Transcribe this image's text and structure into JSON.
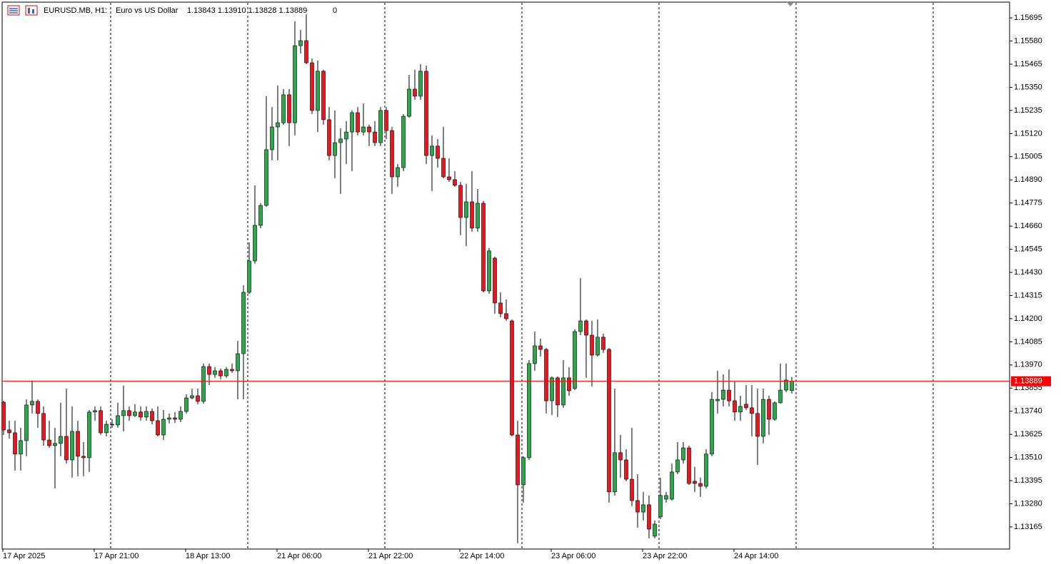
{
  "chart_data": {
    "type": "candlestick",
    "title": "EURUSD.MB, H1:",
    "subtitle": "Euro vs US Dollar",
    "quote": "1.13843 1.13910 1.13828 1.13889",
    "spread": 0,
    "colors": {
      "up": "#2ba84a",
      "down": "#f0141e",
      "wick": "#000000",
      "bid": "#ff0000"
    },
    "bid": 1.13889,
    "ylim": [
      1.13055,
      1.15784
    ],
    "yticks": [
      1.15695,
      {
        "value": 1.1558,
        "label": "1.15580"
      },
      1.15465,
      {
        "value": 1.1535,
        "label": "1.15350"
      },
      1.15235,
      {
        "value": 1.1512,
        "label": "1.15120"
      },
      1.15005,
      {
        "value": 1.1489,
        "label": "1.14890"
      },
      1.14775,
      {
        "value": 1.1466,
        "label": "1.14660"
      },
      1.14545,
      {
        "value": 1.1443,
        "label": "1.14430"
      },
      1.14315,
      {
        "value": 1.142,
        "label": "1.14200"
      },
      1.14085,
      {
        "value": 1.1397,
        "label": "1.13970"
      },
      1.13855,
      {
        "value": 1.1374,
        "label": "1.13740"
      },
      1.13625,
      {
        "value": 1.1351,
        "label": "1.13510"
      },
      1.13395,
      {
        "value": 1.1328,
        "label": "1.13280"
      },
      1.13165
    ],
    "categories": [
      "17 Apr 2025",
      null,
      null,
      null,
      null,
      null,
      null,
      null,
      null,
      null,
      null,
      null,
      null,
      null,
      null,
      null,
      "17 Apr 21:00",
      null,
      null,
      null,
      null,
      null,
      null,
      null,
      null,
      null,
      null,
      null,
      null,
      null,
      null,
      null,
      "18 Apr 13:00",
      null,
      null,
      null,
      null,
      null,
      null,
      null,
      null,
      null,
      null,
      null,
      null,
      null,
      null,
      null,
      "21 Apr 06:00",
      null,
      null,
      null,
      null,
      null,
      null,
      null,
      null,
      null,
      null,
      null,
      null,
      null,
      null,
      null,
      "21 Apr 22:00",
      null,
      null,
      null,
      null,
      null,
      null,
      null,
      null,
      null,
      null,
      null,
      null,
      null,
      null,
      null,
      "22 Apr 14:00",
      null,
      null,
      null,
      null,
      null,
      null,
      null,
      null,
      null,
      null,
      null,
      null,
      null,
      null,
      null,
      "23 Apr 06:00",
      null,
      null,
      null,
      null,
      null,
      null,
      null,
      null,
      null,
      null,
      null,
      null,
      null,
      null,
      null,
      "23 Apr 22:00",
      null,
      null,
      null,
      null,
      null,
      null,
      null,
      null,
      null,
      null,
      null,
      null,
      null,
      null,
      null,
      "24 Apr 14:00",
      null,
      null,
      null,
      null,
      null,
      null,
      null,
      null,
      null,
      null
    ],
    "open": [
      1.13785,
      1.13647,
      1.13633,
      1.13527,
      1.13594,
      1.13771,
      1.13789,
      1.13729,
      1.13597,
      1.13569,
      1.1358,
      1.13615,
      1.13498,
      1.1364,
      1.13516,
      1.13509,
      1.13736,
      1.13743,
      1.13633,
      1.13675,
      1.13672,
      1.13718,
      1.13743,
      1.13718,
      1.13736,
      1.13711,
      1.13739,
      1.13693,
      1.13622,
      1.137,
      1.13707,
      1.137,
      1.13739,
      1.13806,
      1.13817,
      1.13789,
      1.13962,
      1.13923,
      1.13941,
      1.13916,
      1.13948,
      1.13941,
      1.14026,
      1.14331,
      1.14487,
      1.14664,
      1.14763,
      1.1504,
      1.15153,
      1.15174,
      1.15313,
      1.15174,
      1.15557,
      1.15582,
      1.15472,
      1.15235,
      1.1543,
      1.15189,
      1.15011,
      1.15075,
      1.15093,
      1.15128,
      1.15224,
      1.15128,
      1.15153,
      1.15128,
      1.15075,
      1.15235,
      1.15135,
      1.14905,
      1.14951,
      1.15206,
      1.15341,
      1.15306,
      1.1543,
      1.15011,
      1.15058,
      1.14997,
      1.14905,
      1.14891,
      1.14863,
      1.14703,
      1.14781,
      1.1465,
      1.14774,
      1.14338,
      1.14501,
      1.14278,
      1.14225,
      1.14189,
      1.13622,
      1.13374,
      1.13509,
      1.13977,
      1.14065,
      1.14047,
      1.13792,
      1.13906,
      1.13771,
      1.13906,
      1.13853,
      1.14136,
      1.14189,
      1.14118,
      1.14019,
      1.14108,
      1.14047,
      1.13339,
      1.13534,
      1.13498,
      1.13402,
      1.13296,
      1.13239,
      1.13275,
      1.13119,
      1.13215,
      1.13303,
      1.13303,
      1.13438,
      1.13498,
      1.13558,
      1.13392,
      1.13381,
      1.13367,
      1.13527,
      1.13792,
      1.13799,
      1.13845,
      1.13792,
      1.13736,
      1.13775,
      1.13757,
      1.13729,
      1.13615,
      1.13799,
      1.137,
      1.13782,
      1.13845,
      1.13843
    ],
    "high": [
      1.13792,
      1.13693,
      1.13693,
      1.13658,
      1.13799,
      1.13892,
      1.13799,
      1.13764,
      1.13693,
      1.13658,
      1.13782,
      1.13853,
      1.13764,
      1.13693,
      1.13587,
      1.13746,
      1.13764,
      1.13764,
      1.13693,
      1.137,
      1.13782,
      1.13867,
      1.13764,
      1.13775,
      1.13764,
      1.13764,
      1.13753,
      1.13764,
      1.13746,
      1.13729,
      1.13736,
      1.13764,
      1.13824,
      1.13853,
      1.13853,
      1.13977,
      1.13977,
      1.13959,
      1.13952,
      1.13959,
      1.13977,
      1.1409,
      1.14366,
      1.14579,
      1.14863,
      1.14774,
      1.15306,
      1.15252,
      1.15359,
      1.15341,
      1.15341,
      1.15678,
      1.15635,
      1.15713,
      1.15493,
      1.15483,
      1.15437,
      1.15252,
      1.15235,
      1.15146,
      1.15182,
      1.15235,
      1.15252,
      1.1527,
      1.15164,
      1.15182,
      1.15252,
      1.15252,
      1.15153,
      1.14969,
      1.15217,
      1.15412,
      1.15437,
      1.15465,
      1.15458,
      1.15111,
      1.15093,
      1.15153,
      1.14997,
      1.14933,
      1.1488,
      1.1487,
      1.14933,
      1.14845,
      1.14785,
      1.14551,
      1.14508,
      1.14331,
      1.14296,
      1.14196,
      1.13693,
      1.13516,
      1.13994,
      1.14136,
      1.14101,
      1.14055,
      1.13913,
      1.13913,
      1.13994,
      1.13959,
      1.14147,
      1.14402,
      1.14196,
      1.14189,
      1.14196,
      1.14125,
      1.14055,
      1.13853,
      1.13622,
      1.13551,
      1.13658,
      1.13427,
      1.13339,
      1.13321,
      1.13197,
      1.1341,
      1.13339,
      1.1348,
      1.13587,
      1.13587,
      1.13569,
      1.13463,
      1.1341,
      1.13551,
      1.13835,
      1.13941,
      1.13923,
      1.13948,
      1.13888,
      1.13817,
      1.1387,
      1.1387,
      1.13853,
      1.13853,
      1.13817,
      1.13789,
      1.13977,
      1.13977,
      1.1391
    ],
    "low": [
      1.13622,
      1.13604,
      1.13445,
      1.13445,
      1.13516,
      1.13729,
      1.13658,
      1.13569,
      1.13558,
      1.13356,
      1.13516,
      1.1348,
      1.1341,
      1.13417,
      1.13417,
      1.13438,
      1.13693,
      1.13622,
      1.13615,
      1.13658,
      1.13658,
      1.1364,
      1.13693,
      1.13711,
      1.13693,
      1.13693,
      1.13675,
      1.13615,
      1.13597,
      1.13679,
      1.13682,
      1.13686,
      1.13729,
      1.13799,
      1.13775,
      1.13778,
      1.1387,
      1.13906,
      1.13899,
      1.13906,
      1.13931,
      1.13799,
      1.13799,
      1.14324,
      1.14473,
      1.1465,
      1.14756,
      1.14987,
      1.14987,
      1.15164,
      1.15058,
      1.15111,
      1.15518,
      1.15465,
      1.15217,
      1.15128,
      1.15164,
      1.14987,
      1.14898,
      1.1482,
      1.14969,
      1.14933,
      1.15111,
      1.15111,
      1.15058,
      1.15058,
      1.15058,
      1.15093,
      1.1482,
      1.14856,
      1.14933,
      1.15199,
      1.15288,
      1.15288,
      1.14969,
      1.14834,
      1.14951,
      1.14898,
      1.1488,
      1.14856,
      1.14615,
      1.14561,
      1.14632,
      1.14632,
      1.14331,
      1.14324,
      1.14225,
      1.14207,
      1.14189,
      1.13615,
      1.13084,
      1.13286,
      1.13498,
      1.13941,
      1.14012,
      1.13729,
      1.13721,
      1.13711,
      1.13757,
      1.13817,
      1.13845,
      1.14118,
      1.13906,
      1.13863,
      1.14012,
      1.1403,
      1.13286,
      1.13321,
      1.1341,
      1.13392,
      1.13268,
      1.13161,
      1.13197,
      1.13108,
      1.13108,
      1.13204,
      1.13286,
      1.13296,
      1.13427,
      1.1348,
      1.13374,
      1.13339,
      1.13314,
      1.13356,
      1.13516,
      1.13729,
      1.13764,
      1.13764,
      1.13693,
      1.13693,
      1.13746,
      1.13615,
      1.13473,
      1.1358,
      1.13622,
      1.13693,
      1.13778,
      1.13835,
      1.13828
    ],
    "close": [
      1.13647,
      1.13633,
      1.13527,
      1.13594,
      1.13771,
      1.13789,
      1.13729,
      1.13597,
      1.13569,
      1.1358,
      1.13615,
      1.13498,
      1.1364,
      1.13516,
      1.13509,
      1.13736,
      1.13743,
      1.13633,
      1.13675,
      1.13672,
      1.13718,
      1.13743,
      1.13718,
      1.13736,
      1.13711,
      1.13739,
      1.13693,
      1.13622,
      1.137,
      1.13707,
      1.137,
      1.13739,
      1.13806,
      1.13817,
      1.13789,
      1.13962,
      1.13923,
      1.13941,
      1.13916,
      1.13948,
      1.13941,
      1.14026,
      1.14331,
      1.14487,
      1.14664,
      1.14763,
      1.1504,
      1.15153,
      1.15174,
      1.15313,
      1.15174,
      1.15557,
      1.15582,
      1.15472,
      1.15235,
      1.1543,
      1.15189,
      1.15011,
      1.15075,
      1.15093,
      1.15128,
      1.15224,
      1.15128,
      1.15153,
      1.15128,
      1.15075,
      1.15235,
      1.15135,
      1.14905,
      1.14951,
      1.15206,
      1.15341,
      1.15306,
      1.1543,
      1.15011,
      1.15058,
      1.14997,
      1.14905,
      1.14891,
      1.14863,
      1.14703,
      1.14781,
      1.1465,
      1.14774,
      1.14338,
      1.14537,
      1.14278,
      1.14225,
      1.142,
      1.13622,
      1.13374,
      1.13509,
      1.13977,
      1.14065,
      1.14047,
      1.13792,
      1.13906,
      1.13771,
      1.13906,
      1.13842,
      1.14136,
      1.14189,
      1.14118,
      1.14019,
      1.14108,
      1.14047,
      1.13339,
      1.13534,
      1.13498,
      1.13402,
      1.13296,
      1.13239,
      1.13275,
      1.13154,
      1.13179,
      1.13321,
      1.13321,
      1.13438,
      1.13498,
      1.13558,
      1.13381,
      1.13381,
      1.13367,
      1.13527,
      1.13799,
      1.13799,
      1.13845,
      1.13792,
      1.13736,
      1.13764,
      1.13757,
      1.13729,
      1.13615,
      1.13799,
      1.137,
      1.13782,
      1.13845,
      1.13895,
      1.13889
    ]
  }
}
